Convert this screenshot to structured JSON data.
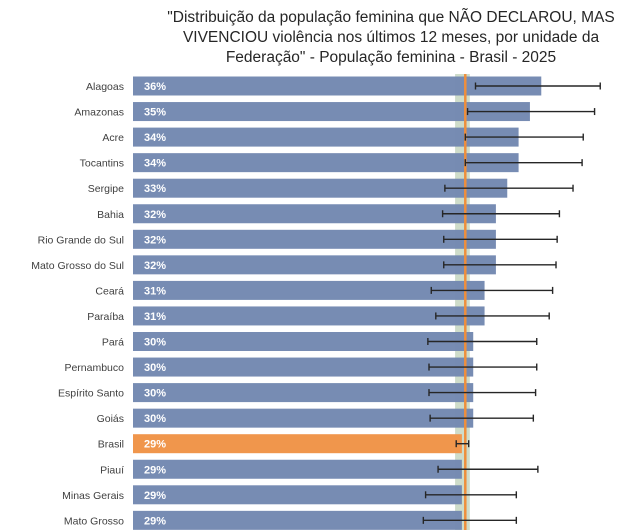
{
  "chart_data": {
    "type": "bar",
    "orientation": "horizontal",
    "title_lines": [
      "\"Distribuição da população feminina que NÃO DECLAROU, MAS",
      "VIVENCIOU violência nos últimos 12 meses, por unidade da",
      "Federação\" - População feminina - Brasil - 2025"
    ],
    "categories": [
      "Alagoas",
      "Amazonas",
      "Acre",
      "Tocantins",
      "Sergipe",
      "Bahia",
      "Rio Grande do Sul",
      "Mato Grosso do Sul",
      "Ceará",
      "Paraíba",
      "Pará",
      "Pernambuco",
      "Espírito Santo",
      "Goiás",
      "Brasil",
      "Piauí",
      "Minas Gerais",
      "Mato Grosso"
    ],
    "values": [
      36,
      35,
      34,
      34,
      33,
      32,
      32,
      32,
      31,
      31,
      30,
      30,
      30,
      30,
      29,
      29,
      29,
      29
    ],
    "value_labels": [
      "36%",
      "35%",
      "34%",
      "34%",
      "33%",
      "32%",
      "32%",
      "32%",
      "31%",
      "31%",
      "30%",
      "30%",
      "30%",
      "30%",
      "29%",
      "29%",
      "29%",
      "29%"
    ],
    "ci_low": [
      30.2,
      29.5,
      29.3,
      29.3,
      27.5,
      27.3,
      27.4,
      27.4,
      26.3,
      26.7,
      26.0,
      26.1,
      26.1,
      26.2,
      28.5,
      26.9,
      25.8,
      25.6
    ],
    "ci_high": [
      41.2,
      40.7,
      39.7,
      39.6,
      38.8,
      37.6,
      37.4,
      37.3,
      37.0,
      36.7,
      35.6,
      35.6,
      35.5,
      35.3,
      29.6,
      35.7,
      33.8,
      33.8
    ],
    "highlight_category": "Brasil",
    "reference_line": 29.3,
    "reference_band": [
      28.4,
      29.7
    ],
    "colors": {
      "bar": "#7388b1",
      "highlight_bar": "#f0964c",
      "reference_line": "#ee8f3c",
      "reference_band": "#bed0b8",
      "error_bar": "#262626"
    },
    "xlim": [
      0,
      44
    ]
  }
}
